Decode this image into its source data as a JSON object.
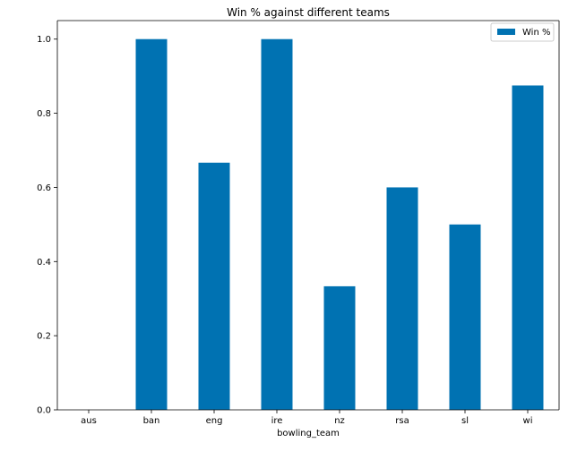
{
  "chart_data": {
    "type": "bar",
    "title": "Win % against different teams",
    "xlabel": "bowling_team",
    "ylabel": "",
    "categories": [
      "aus",
      "ban",
      "eng",
      "ire",
      "nz",
      "rsa",
      "sl",
      "wi"
    ],
    "series": [
      {
        "name": "Win %",
        "values": [
          0.0,
          1.0,
          0.6667,
          1.0,
          0.3333,
          0.6,
          0.5,
          0.875
        ],
        "color": "#0072b2"
      }
    ],
    "ylim": [
      0,
      1.05
    ],
    "yticks": [
      "0.0",
      "0.2",
      "0.4",
      "0.6",
      "0.8",
      "1.0"
    ],
    "grid": false,
    "legend_position": "top-right"
  }
}
